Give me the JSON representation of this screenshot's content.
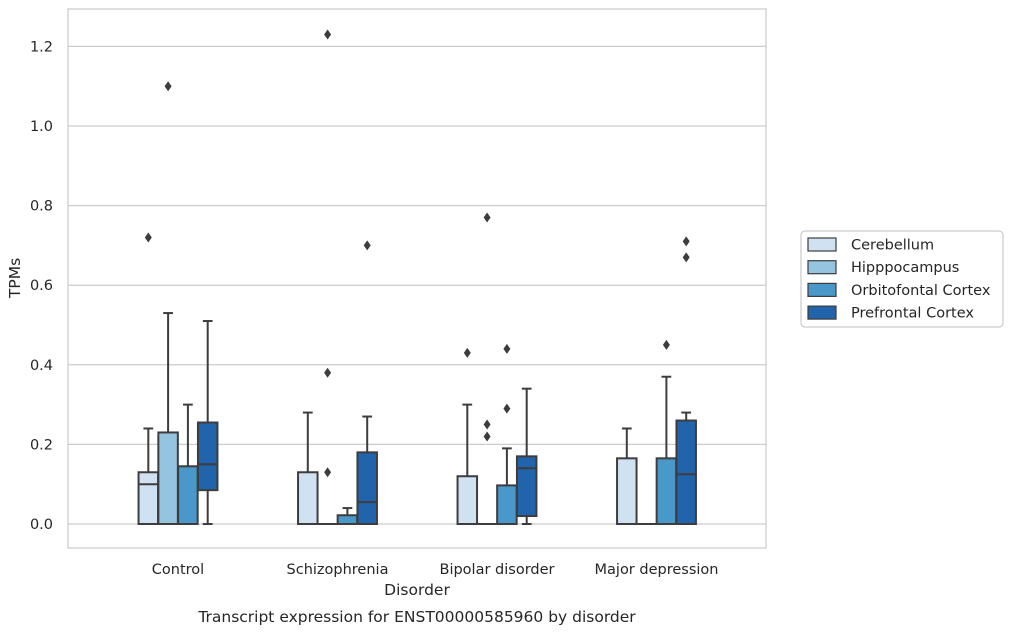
{
  "chart_data": {
    "type": "box",
    "caption": "Transcript expression for ENST00000585960 by disorder",
    "xlabel": "Disorder",
    "ylabel": "TPMs",
    "ylim": [
      -0.06,
      1.29
    ],
    "yticks": [
      "0.0",
      "0.2",
      "0.4",
      "0.6",
      "0.8",
      "1.0",
      "1.2"
    ],
    "grid": true,
    "legend_position": "right",
    "categories": [
      "Control",
      "Schizophrenia",
      "Bipolar disorder",
      "Major depression"
    ],
    "series": [
      {
        "name": "Cerebellum",
        "color": "#d0e1f2",
        "boxes": [
          {
            "whislo": 0.0,
            "q1": 0.0,
            "med": 0.1,
            "q3": 0.13,
            "whishi": 0.24,
            "fliers": [
              0.72
            ]
          },
          {
            "whislo": 0.0,
            "q1": 0.0,
            "med": 0.0,
            "q3": 0.13,
            "whishi": 0.28,
            "fliers": []
          },
          {
            "whislo": 0.0,
            "q1": 0.0,
            "med": 0.0,
            "q3": 0.12,
            "whishi": 0.3,
            "fliers": [
              0.43
            ]
          },
          {
            "whislo": 0.0,
            "q1": 0.0,
            "med": 0.0,
            "q3": 0.165,
            "whishi": 0.24,
            "fliers": []
          }
        ]
      },
      {
        "name": "Hipppocampus",
        "color": "#94c4df",
        "boxes": [
          {
            "whislo": 0.0,
            "q1": 0.0,
            "med": 0.0,
            "q3": 0.23,
            "whishi": 0.53,
            "fliers": [
              1.1
            ]
          },
          {
            "whislo": 0.0,
            "q1": 0.0,
            "med": 0.0,
            "q3": 0.0,
            "whishi": 0.0,
            "fliers": [
              0.13,
              0.38,
              1.23
            ]
          },
          {
            "whislo": 0.0,
            "q1": 0.0,
            "med": 0.0,
            "q3": 0.0,
            "whishi": 0.0,
            "fliers": [
              0.22,
              0.25,
              0.77
            ]
          },
          {
            "whislo": 0.0,
            "q1": 0.0,
            "med": 0.0,
            "q3": 0.0,
            "whishi": 0.0,
            "fliers": []
          }
        ]
      },
      {
        "name": "Orbitofontal Cortex",
        "color": "#4a98c9",
        "boxes": [
          {
            "whislo": 0.0,
            "q1": 0.0,
            "med": 0.0,
            "q3": 0.145,
            "whishi": 0.3,
            "fliers": []
          },
          {
            "whislo": 0.0,
            "q1": 0.0,
            "med": 0.0,
            "q3": 0.022,
            "whishi": 0.04,
            "fliers": []
          },
          {
            "whislo": 0.0,
            "q1": 0.0,
            "med": 0.0,
            "q3": 0.097,
            "whishi": 0.19,
            "fliers": [
              0.29,
              0.44
            ]
          },
          {
            "whislo": 0.0,
            "q1": 0.0,
            "med": 0.0,
            "q3": 0.165,
            "whishi": 0.37,
            "fliers": [
              0.45
            ]
          }
        ]
      },
      {
        "name": "Prefrontal Cortex",
        "color": "#2164ab",
        "boxes": [
          {
            "whislo": 0.0,
            "q1": 0.085,
            "med": 0.15,
            "q3": 0.255,
            "whishi": 0.51,
            "fliers": []
          },
          {
            "whislo": 0.0,
            "q1": 0.0,
            "med": 0.055,
            "q3": 0.18,
            "whishi": 0.27,
            "fliers": [
              0.7
            ]
          },
          {
            "whislo": 0.0,
            "q1": 0.02,
            "med": 0.14,
            "q3": 0.17,
            "whishi": 0.34,
            "fliers": []
          },
          {
            "whislo": 0.0,
            "q1": 0.0,
            "med": 0.125,
            "q3": 0.26,
            "whishi": 0.28,
            "fliers": [
              0.67,
              0.71
            ]
          }
        ]
      }
    ]
  }
}
